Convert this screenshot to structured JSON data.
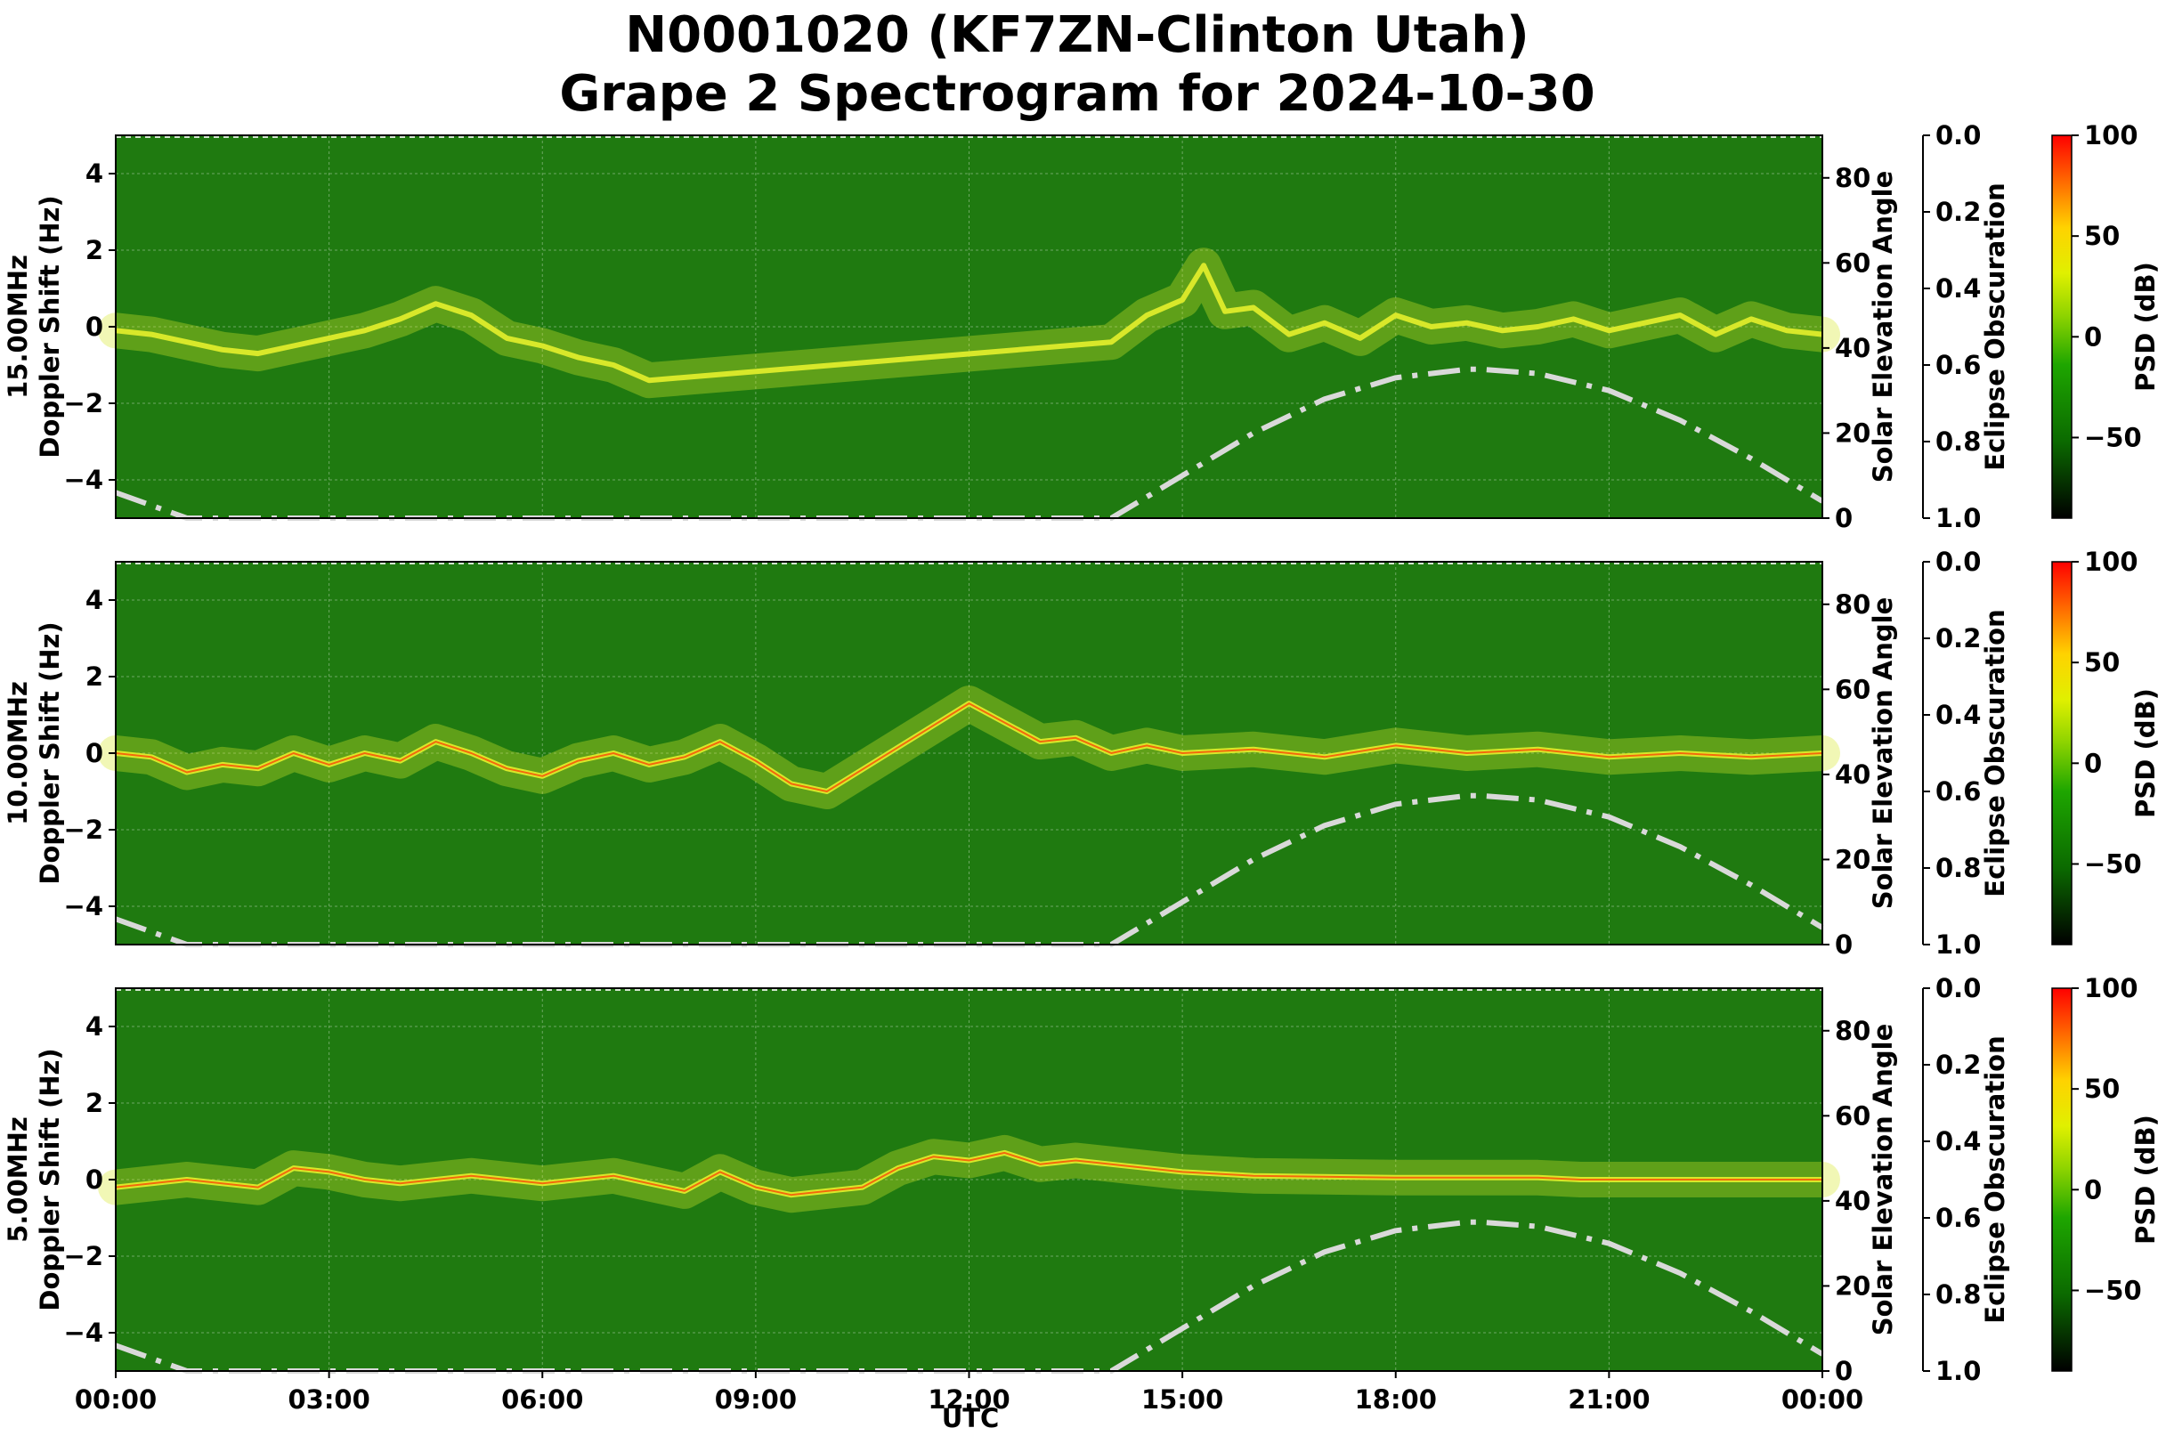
{
  "chart_data": {
    "type": "heatmap",
    "title": "N0001020 (KF7ZN-Clinton Utah)",
    "subtitle": "Grape 2 Spectrogram for 2024-10-30",
    "xlabel": "UTC",
    "x_ticks": [
      "00:00",
      "03:00",
      "06:00",
      "09:00",
      "12:00",
      "15:00",
      "18:00",
      "21:00",
      "00:00"
    ],
    "xlim_hours": [
      0,
      24
    ],
    "ylabel": "Doppler Shift (Hz)",
    "y_ticks": [
      4,
      2,
      0,
      -2,
      -4
    ],
    "ylim": [
      -5,
      5
    ],
    "y2label": "Solar Elevation Angle",
    "y2_ticks": [
      80,
      60,
      40,
      20,
      0
    ],
    "y2lim": [
      0,
      90
    ],
    "eclipse_label": "Eclipse Obscuration",
    "eclipse_ticks": [
      "0.0",
      "0.2",
      "0.4",
      "0.6",
      "0.8",
      "1.0"
    ],
    "colorbar_label": "PSD (dB)",
    "colorbar_ticks": [
      100,
      50,
      0,
      -50
    ],
    "colorbar_range": [
      -90,
      100
    ],
    "colors": {
      "background": "#1f7a10",
      "signal": "#d8e82a",
      "peak": "#ff3300",
      "solar_curve": "#d9d9d9"
    },
    "solar_elevation": {
      "hours": [
        0,
        1,
        14,
        15,
        16,
        17,
        18,
        19,
        19.2,
        20,
        21,
        22,
        23,
        24
      ],
      "degrees": [
        6,
        0,
        0,
        10,
        20,
        28,
        33,
        35,
        35,
        34,
        30,
        23,
        14,
        4
      ]
    },
    "panels": [
      {
        "label": "15.00MHz",
        "carrier": {
          "hours": [
            0,
            0.5,
            1,
            1.5,
            2,
            2.5,
            3,
            3.5,
            4,
            4.5,
            5,
            5.5,
            6,
            6.5,
            7,
            7.5,
            14,
            14.5,
            15,
            15.3,
            15.6,
            16,
            16.5,
            17,
            17.5,
            18,
            18.5,
            19,
            19.5,
            20,
            20.5,
            21,
            21.5,
            22,
            22.5,
            23,
            23.5,
            24
          ],
          "hz": [
            -0.1,
            -0.2,
            -0.4,
            -0.6,
            -0.7,
            -0.5,
            -0.3,
            -0.1,
            0.2,
            0.6,
            0.3,
            -0.3,
            -0.5,
            -0.8,
            -1.0,
            -1.4,
            -0.4,
            0.3,
            0.7,
            1.6,
            0.4,
            0.5,
            -0.2,
            0.1,
            -0.3,
            0.3,
            0.0,
            0.1,
            -0.1,
            0.0,
            0.2,
            -0.1,
            0.1,
            0.3,
            -0.2,
            0.2,
            -0.1,
            -0.2
          ]
        }
      },
      {
        "label": "10.00MHz",
        "carrier": {
          "hours": [
            0,
            0.5,
            1,
            1.5,
            2,
            2.5,
            3,
            3.5,
            4,
            4.5,
            5,
            5.5,
            6,
            6.5,
            7,
            7.5,
            8,
            8.5,
            9,
            9.5,
            10,
            12,
            12.5,
            13,
            13.5,
            14,
            14.5,
            15,
            16,
            17,
            18,
            19,
            20,
            21,
            22,
            23,
            24
          ],
          "hz": [
            0.0,
            -0.1,
            -0.5,
            -0.3,
            -0.4,
            0.0,
            -0.3,
            0.0,
            -0.2,
            0.3,
            0.0,
            -0.4,
            -0.6,
            -0.2,
            0.0,
            -0.3,
            -0.1,
            0.3,
            -0.2,
            -0.8,
            -1.0,
            1.3,
            0.8,
            0.3,
            0.4,
            0.0,
            0.2,
            0.0,
            0.1,
            -0.1,
            0.2,
            0.0,
            0.1,
            -0.1,
            0.0,
            -0.1,
            0.0
          ]
        }
      },
      {
        "label": "5.00MHz",
        "carrier": {
          "hours": [
            0,
            1,
            2,
            2.5,
            3,
            3.5,
            4,
            5,
            6,
            7,
            8,
            8.5,
            9,
            9.5,
            10,
            10.5,
            11,
            11.5,
            12,
            12.5,
            13,
            13.5,
            14,
            15,
            16,
            18,
            20,
            20.6,
            21.3,
            22,
            23,
            24
          ],
          "hz": [
            -0.2,
            0.0,
            -0.2,
            0.3,
            0.2,
            0.0,
            -0.1,
            0.1,
            -0.1,
            0.1,
            -0.3,
            0.2,
            -0.2,
            -0.4,
            -0.3,
            -0.2,
            0.3,
            0.6,
            0.5,
            0.7,
            0.4,
            0.5,
            0.4,
            0.2,
            0.1,
            0.05,
            0.05,
            0.0,
            0.0,
            0.0,
            0.0,
            0.0
          ]
        }
      }
    ]
  }
}
